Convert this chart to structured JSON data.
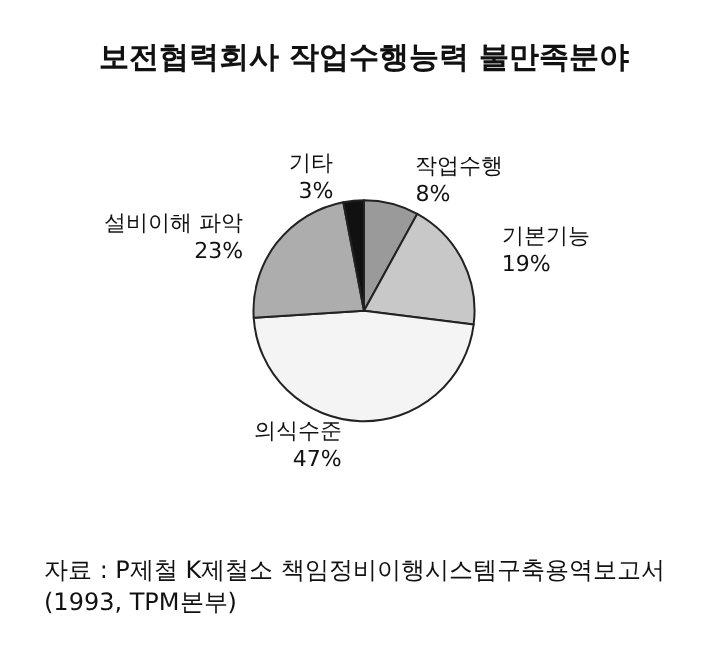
{
  "chart_data": {
    "type": "pie",
    "title": "보전협력회사 작업수행능력 불만족분야",
    "categories": [
      "작업수행",
      "기본기능",
      "의식수준",
      "설비이해 파악",
      "기타"
    ],
    "values": [
      8,
      19,
      47,
      23,
      3
    ],
    "value_labels": [
      "8%",
      "19%",
      "47%",
      "23%",
      "3%"
    ],
    "colors": [
      "#9a9a9a",
      "#c8c8c8",
      "#f4f4f4",
      "#adadad",
      "#111111"
    ],
    "annotations": [
      "자료 : P제철 K제철소 책임정비이행시스템구축용역보고서(1993, TPM본부)"
    ]
  }
}
